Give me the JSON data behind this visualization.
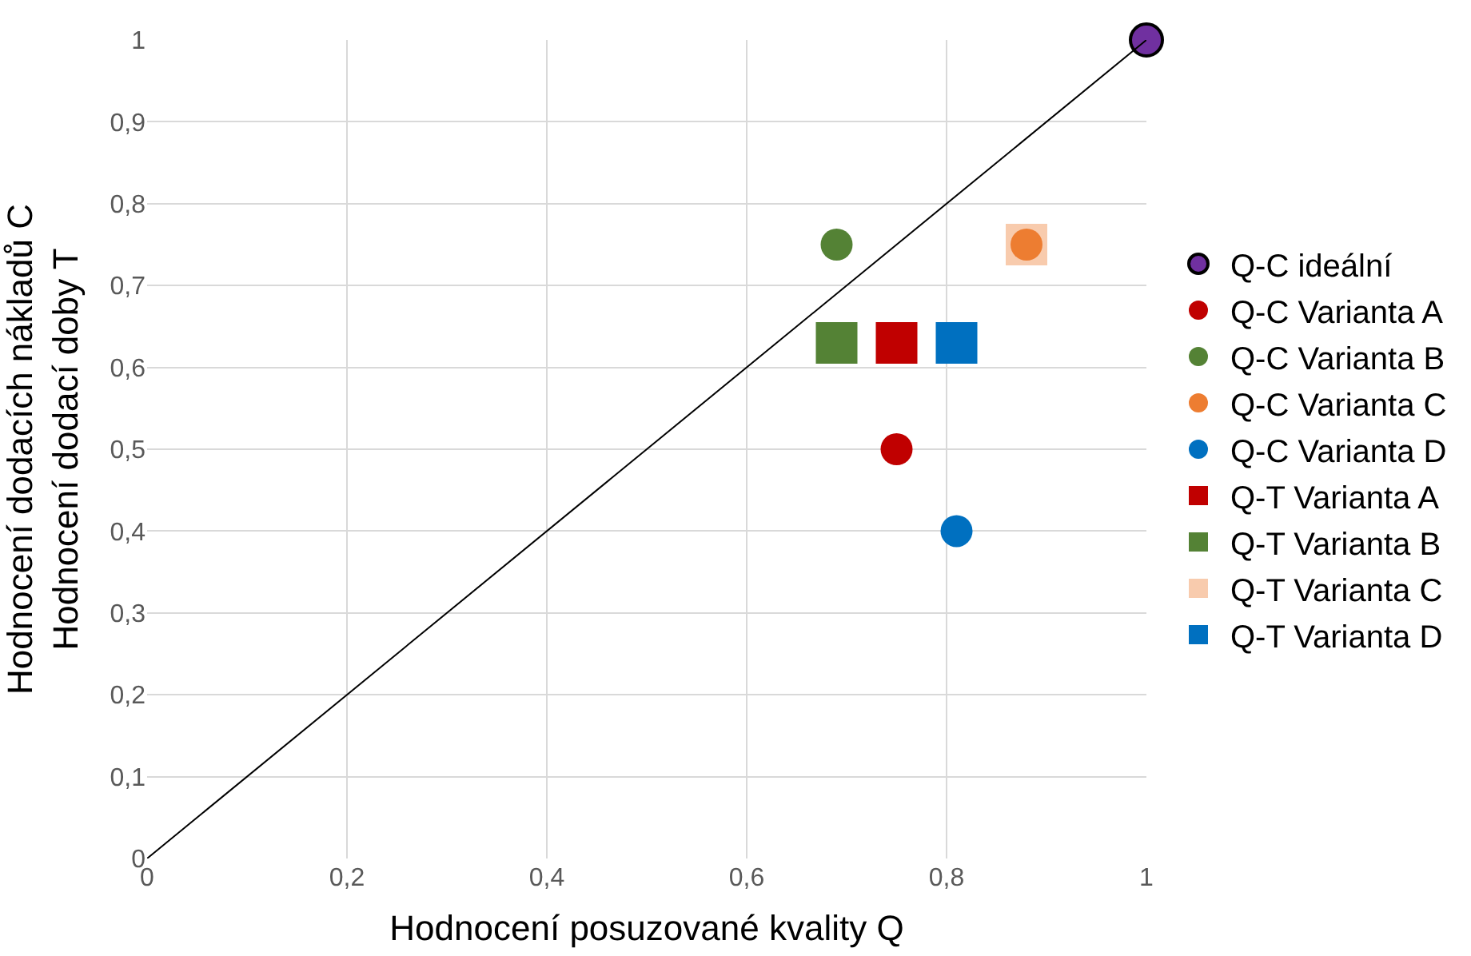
{
  "chart_data": {
    "type": "scatter",
    "xlabel": "Hodnocení posuzované kvality Q",
    "ylabel": "Hodnocení dodacích nákladů C\nHodnocení dodací doby T",
    "xlim": [
      0,
      1
    ],
    "ylim": [
      0,
      1
    ],
    "xticks": [
      0,
      {
        "value": 0.2,
        "label": "0,2"
      },
      {
        "value": 0.4,
        "label": "0,4"
      },
      {
        "value": 0.6,
        "label": "0,6"
      },
      {
        "value": 0.8,
        "label": "0,8"
      },
      1
    ],
    "yticks": [
      0,
      {
        "value": 0.1,
        "label": "0,1"
      },
      {
        "value": 0.2,
        "label": "0,2"
      },
      {
        "value": 0.3,
        "label": "0,3"
      },
      {
        "value": 0.4,
        "label": "0,4"
      },
      {
        "value": 0.5,
        "label": "0,5"
      },
      {
        "value": 0.6,
        "label": "0,6"
      },
      {
        "value": 0.7,
        "label": "0,7"
      },
      {
        "value": 0.8,
        "label": "0,8"
      },
      {
        "value": 0.9,
        "label": "0,9"
      },
      1
    ],
    "grid": true,
    "legend": "right",
    "series": [
      {
        "name": "Q-C ideální",
        "color": "#7030a0",
        "marker": "circle",
        "x": [
          1
        ],
        "values": [
          1
        ]
      },
      {
        "name": "Q-C Varianta A",
        "color": "#c00000",
        "marker": "circle",
        "x": [
          0.75
        ],
        "values": [
          0.5
        ]
      },
      {
        "name": "Q-C Varianta B",
        "color": "#548235",
        "marker": "circle",
        "x": [
          0.69
        ],
        "values": [
          0.75
        ]
      },
      {
        "name": "Q-C Varianta C",
        "color": "#ed7d31",
        "marker": "circle",
        "x": [
          0.88
        ],
        "values": [
          0.75
        ]
      },
      {
        "name": "Q-C Varianta D",
        "color": "#0070c0",
        "marker": "circle",
        "x": [
          0.81
        ],
        "values": [
          0.4
        ]
      },
      {
        "name": "Q-T Varianta A",
        "color": "#c00000",
        "marker": "square",
        "x": [
          0.75
        ],
        "values": [
          0.63
        ]
      },
      {
        "name": "Q-T Varianta B",
        "color": "#548235",
        "marker": "square",
        "x": [
          0.69
        ],
        "values": [
          0.63
        ]
      },
      {
        "name": "Q-T Varianta C",
        "color": "#f8cbad",
        "marker": "square",
        "x": [
          0.88
        ],
        "values": [
          0.75
        ]
      },
      {
        "name": "Q-T Varianta D",
        "color": "#0070c0",
        "marker": "square",
        "x": [
          0.81
        ],
        "values": [
          0.63
        ]
      },
      {
        "type": "line",
        "color": "#000000",
        "marker": "none",
        "x": [
          0,
          1
        ],
        "values": [
          0,
          1
        ]
      }
    ]
  }
}
